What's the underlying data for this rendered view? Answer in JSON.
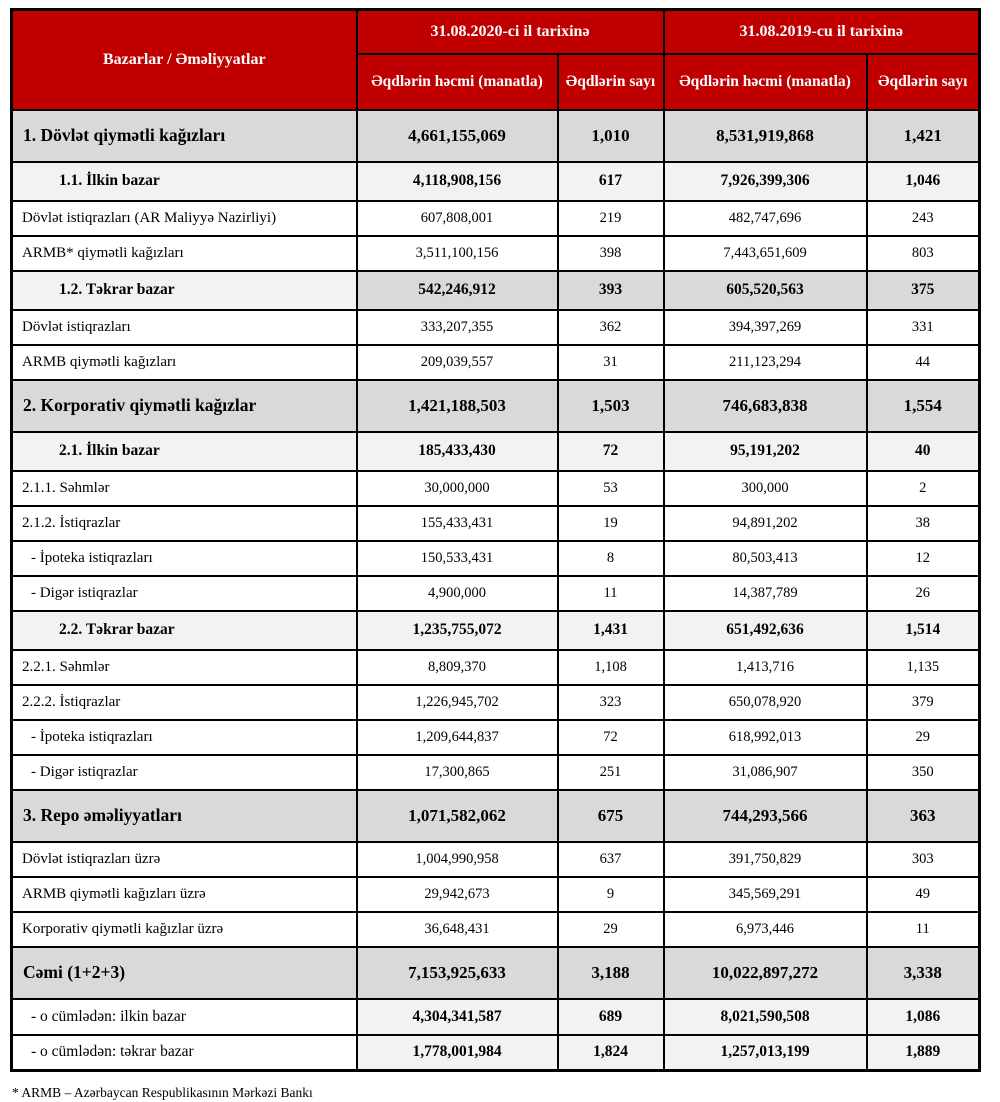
{
  "colors": {
    "header_bg": "#c00000",
    "header_text": "#ffffff",
    "section_bg": "#d9d9d9",
    "subsection_bg": "#f2f2f2",
    "border": "#000000"
  },
  "header": {
    "col_label": "Bazarlar / Əməliyyatlar",
    "group_2020": "31.08.2020-ci il tarixinə",
    "group_2019": "31.08.2019-cu il tarixinə",
    "sub_volume": "Əqdlərin həcmi (manatla)",
    "sub_count": "Əqdlərin sayı"
  },
  "rows": [
    {
      "type": "section",
      "label": "1. Dövlət qiymətli kağızları",
      "volume_2020": "4,661,155,069",
      "count_2020": "1,010",
      "volume_2019": "8,531,919,868",
      "count_2019": "1,421"
    },
    {
      "type": "subsection",
      "label": "1.1. İlkin bazar",
      "volume_2020": "4,118,908,156",
      "count_2020": "617",
      "volume_2019": "7,926,399,306",
      "count_2019": "1,046"
    },
    {
      "type": "item",
      "label": "Dövlət istiqrazları (AR Maliyyə Nazirliyi)",
      "volume_2020": "607,808,001",
      "count_2020": "219",
      "volume_2019": "482,747,696",
      "count_2019": "243"
    },
    {
      "type": "item",
      "label": "ARMB* qiymətli kağızları",
      "volume_2020": "3,511,100,156",
      "count_2020": "398",
      "volume_2019": "7,443,651,609",
      "count_2019": "803"
    },
    {
      "type": "subsection",
      "dark_data": true,
      "label": "1.2. Təkrar bazar",
      "volume_2020": "542,246,912",
      "count_2020": "393",
      "volume_2019": "605,520,563",
      "count_2019": "375"
    },
    {
      "type": "item",
      "label": "Dövlət istiqrazları",
      "volume_2020": "333,207,355",
      "count_2020": "362",
      "volume_2019": "394,397,269",
      "count_2019": "331"
    },
    {
      "type": "item",
      "label": "ARMB qiymətli kağızları",
      "volume_2020": "209,039,557",
      "count_2020": "31",
      "volume_2019": "211,123,294",
      "count_2019": "44"
    },
    {
      "type": "section",
      "label": "2. Korporativ qiymətli kağızlar",
      "volume_2020": "1,421,188,503",
      "count_2020": "1,503",
      "volume_2019": "746,683,838",
      "count_2019": "1,554"
    },
    {
      "type": "subsection",
      "label": "2.1. İlkin bazar",
      "volume_2020": "185,433,430",
      "count_2020": "72",
      "volume_2019": "95,191,202",
      "count_2019": "40"
    },
    {
      "type": "item",
      "label": "2.1.1. Səhmlər",
      "volume_2020": "30,000,000",
      "count_2020": "53",
      "volume_2019": "300,000",
      "count_2019": "2"
    },
    {
      "type": "item",
      "label": "2.1.2. İstiqrazlar",
      "volume_2020": "155,433,431",
      "count_2020": "19",
      "volume_2019": "94,891,202",
      "count_2019": "38"
    },
    {
      "type": "dash",
      "label": "- İpoteka istiqrazları",
      "volume_2020": "150,533,431",
      "count_2020": "8",
      "volume_2019": "80,503,413",
      "count_2019": "12"
    },
    {
      "type": "dash",
      "label": "- Digər istiqrazlar",
      "volume_2020": "4,900,000",
      "count_2020": "11",
      "volume_2019": "14,387,789",
      "count_2019": "26"
    },
    {
      "type": "subsection",
      "label": "2.2. Təkrar bazar",
      "volume_2020": "1,235,755,072",
      "count_2020": "1,431",
      "volume_2019": "651,492,636",
      "count_2019": "1,514"
    },
    {
      "type": "item",
      "label": "2.2.1. Səhmlər",
      "volume_2020": "8,809,370",
      "count_2020": "1,108",
      "volume_2019": "1,413,716",
      "count_2019": "1,135"
    },
    {
      "type": "item",
      "label": "2.2.2. İstiqrazlar",
      "volume_2020": "1,226,945,702",
      "count_2020": "323",
      "volume_2019": "650,078,920",
      "count_2019": "379"
    },
    {
      "type": "dash",
      "label": "- İpoteka istiqrazları",
      "volume_2020": "1,209,644,837",
      "count_2020": "72",
      "volume_2019": "618,992,013",
      "count_2019": "29"
    },
    {
      "type": "dash",
      "label": "- Digər istiqrazlar",
      "volume_2020": "17,300,865",
      "count_2020": "251",
      "volume_2019": "31,086,907",
      "count_2019": "350"
    },
    {
      "type": "section",
      "label": "3. Repo əməliyyatları",
      "volume_2020": "1,071,582,062",
      "count_2020": "675",
      "volume_2019": "744,293,566",
      "count_2019": "363"
    },
    {
      "type": "item",
      "label": "Dövlət istiqrazları üzrə",
      "volume_2020": "1,004,990,958",
      "count_2020": "637",
      "volume_2019": "391,750,829",
      "count_2019": "303"
    },
    {
      "type": "item",
      "label": "ARMB qiymətli kağızları üzrə",
      "volume_2020": "29,942,673",
      "count_2020": "9",
      "volume_2019": "345,569,291",
      "count_2019": "49"
    },
    {
      "type": "item",
      "label": "Korporativ qiymətli kağızlar üzrə",
      "volume_2020": "36,648,431",
      "count_2020": "29",
      "volume_2019": "6,973,446",
      "count_2019": "11"
    },
    {
      "type": "total",
      "label": "Cəmi (1+2+3)",
      "volume_2020": "7,153,925,633",
      "count_2020": "3,188",
      "volume_2019": "10,022,897,272",
      "count_2019": "3,338"
    },
    {
      "type": "totalsub",
      "label": "- o cümlədən: ilkin bazar",
      "volume_2020": "4,304,341,587",
      "count_2020": "689",
      "volume_2019": "8,021,590,508",
      "count_2019": "1,086"
    },
    {
      "type": "totalsub",
      "label": "- o cümlədən: təkrar bazar",
      "volume_2020": "1,778,001,984",
      "count_2020": "1,824",
      "volume_2019": "1,257,013,199",
      "count_2019": "1,889"
    }
  ],
  "footnote": "* ARMB – Azərbaycan Respublikasının Mərkəzi Bankı"
}
